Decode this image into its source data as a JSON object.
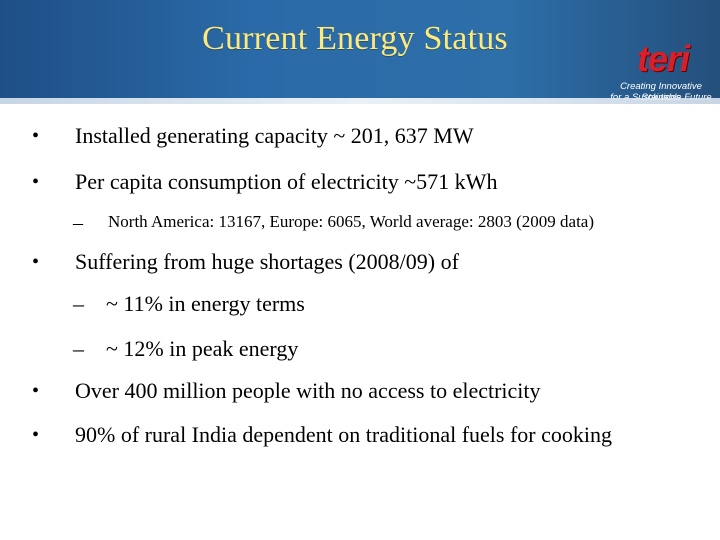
{
  "slide": {
    "title": "Current Energy Status",
    "logo": {
      "name": "teri",
      "tagline_line1": "Creating Innovative Solutions",
      "tagline_line2": "for a Sustainable Future"
    },
    "bullets": [
      {
        "symbol": "•",
        "text": "Installed generating capacity ~ 201, 637 MW"
      },
      {
        "symbol": "•",
        "text": "Per capita consumption of electricity ~571 kWh",
        "sub": [
          {
            "symbol": "–",
            "text": "North America: 13167, Europe: 6065, World average: 2803 (2009 data)"
          }
        ]
      },
      {
        "symbol": "•",
        "text": "Suffering from huge shortages (2008/09) of",
        "sub": [
          {
            "symbol": "–",
            "text": "~ 11% in energy terms"
          },
          {
            "symbol": "–",
            "text": "~ 12% in peak energy"
          }
        ]
      },
      {
        "symbol": "•",
        "text": "Over 400 million people with no access to electricity"
      },
      {
        "symbol": "•",
        "text": "90% of rural India dependent on traditional fuels for cooking"
      }
    ]
  }
}
